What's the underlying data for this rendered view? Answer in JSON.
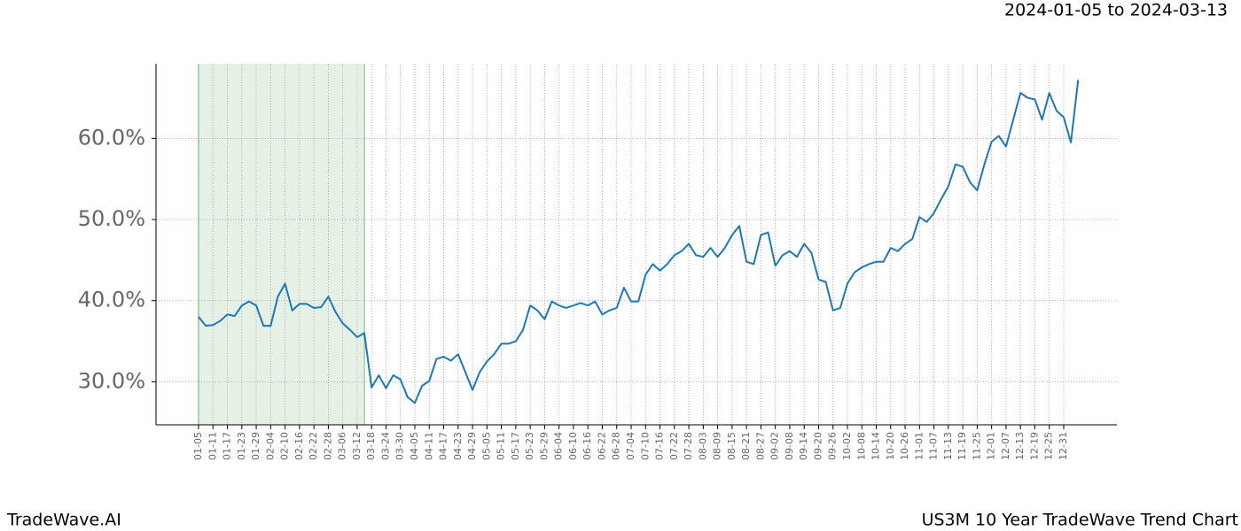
{
  "chart_data": {
    "type": "line",
    "header_right": "2024-01-05 to 2024-03-13",
    "footer_left": "TradeWave.AI",
    "footer_right": "US3M 10 Year TradeWave Trend Chart",
    "categories": [
      "01-05",
      null,
      "01-11",
      null,
      "01-17",
      null,
      "01-23",
      null,
      "01-29",
      null,
      "02-04",
      null,
      "02-10",
      null,
      "02-16",
      null,
      "02-22",
      null,
      "02-28",
      null,
      "03-06",
      null,
      "03-12",
      null,
      "03-18",
      null,
      "03-24",
      null,
      "03-30",
      null,
      "04-05",
      null,
      "04-11",
      null,
      "04-17",
      null,
      "04-23",
      null,
      "04-29",
      null,
      "05-05",
      null,
      "05-11",
      null,
      "05-17",
      null,
      "05-23",
      null,
      "05-29",
      null,
      "06-04",
      null,
      "06-10",
      null,
      "06-16",
      null,
      "06-22",
      null,
      "06-28",
      null,
      "07-04",
      null,
      "07-10",
      null,
      "07-16",
      null,
      "07-22",
      null,
      "07-28",
      null,
      "08-03",
      null,
      "08-09",
      null,
      "08-15",
      null,
      "08-21",
      null,
      "08-27",
      null,
      "09-02",
      null,
      "09-08",
      null,
      "09-14",
      null,
      "09-20",
      null,
      "09-26",
      null,
      "10-02",
      null,
      "10-08",
      null,
      "10-14",
      null,
      "10-20",
      null,
      "10-26",
      null,
      "11-01",
      null,
      "11-07",
      null,
      "11-13",
      null,
      "11-19",
      null,
      "11-25",
      null,
      "12-01",
      null,
      "12-07",
      null,
      "12-13",
      null,
      "12-19",
      null,
      "12-25",
      null,
      "12-31",
      null,
      null
    ],
    "series": [
      {
        "color": "#1f77b4",
        "values": [
          38.0,
          36.9,
          37.0,
          37.5,
          38.3,
          38.1,
          39.4,
          39.9,
          39.4,
          36.9,
          36.9,
          40.5,
          42.1,
          38.8,
          39.6,
          39.6,
          39.1,
          39.2,
          40.5,
          38.6,
          37.2,
          36.4,
          35.5,
          36.0,
          29.3,
          30.8,
          29.2,
          30.8,
          30.3,
          28.1,
          27.4,
          29.5,
          30.1,
          32.8,
          33.1,
          32.6,
          33.4,
          31.2,
          29.0,
          31.2,
          32.5,
          33.4,
          34.7,
          34.7,
          35.0,
          36.4,
          39.4,
          38.8,
          37.7,
          39.9,
          39.4,
          39.1,
          39.4,
          39.7,
          39.4,
          39.9,
          38.3,
          38.8,
          39.1,
          41.6,
          39.9,
          39.9,
          43.2,
          44.5,
          43.7,
          44.5,
          45.6,
          46.1,
          47.0,
          45.6,
          45.4,
          46.5,
          45.4,
          46.5,
          48.1,
          49.2,
          44.8,
          44.5,
          48.1,
          48.4,
          44.3,
          45.6,
          46.1,
          45.4,
          47.0,
          45.9,
          42.6,
          42.3,
          38.8,
          39.1,
          42.1,
          43.5,
          44.1,
          44.5,
          44.8,
          44.8,
          46.5,
          46.1,
          47.0,
          47.6,
          50.3,
          49.7,
          50.8,
          52.5,
          54.1,
          56.8,
          56.5,
          54.6,
          53.6,
          56.8,
          59.6,
          60.3,
          59.0,
          62.3,
          65.6,
          65.0,
          64.8,
          62.3,
          65.6,
          63.4,
          62.6,
          59.5,
          67.2
        ]
      }
    ],
    "ylim": [
      24.7,
      69.2
    ],
    "yticks": [
      {
        "value": 30,
        "label": "30.0%"
      },
      {
        "value": 40,
        "label": "40.0%"
      },
      {
        "value": 50,
        "label": "50.0%"
      },
      {
        "value": 60,
        "label": "60.0%"
      }
    ],
    "shaded_span": [
      0,
      23
    ],
    "shade_color": "#e6f1e6",
    "grid": true
  }
}
